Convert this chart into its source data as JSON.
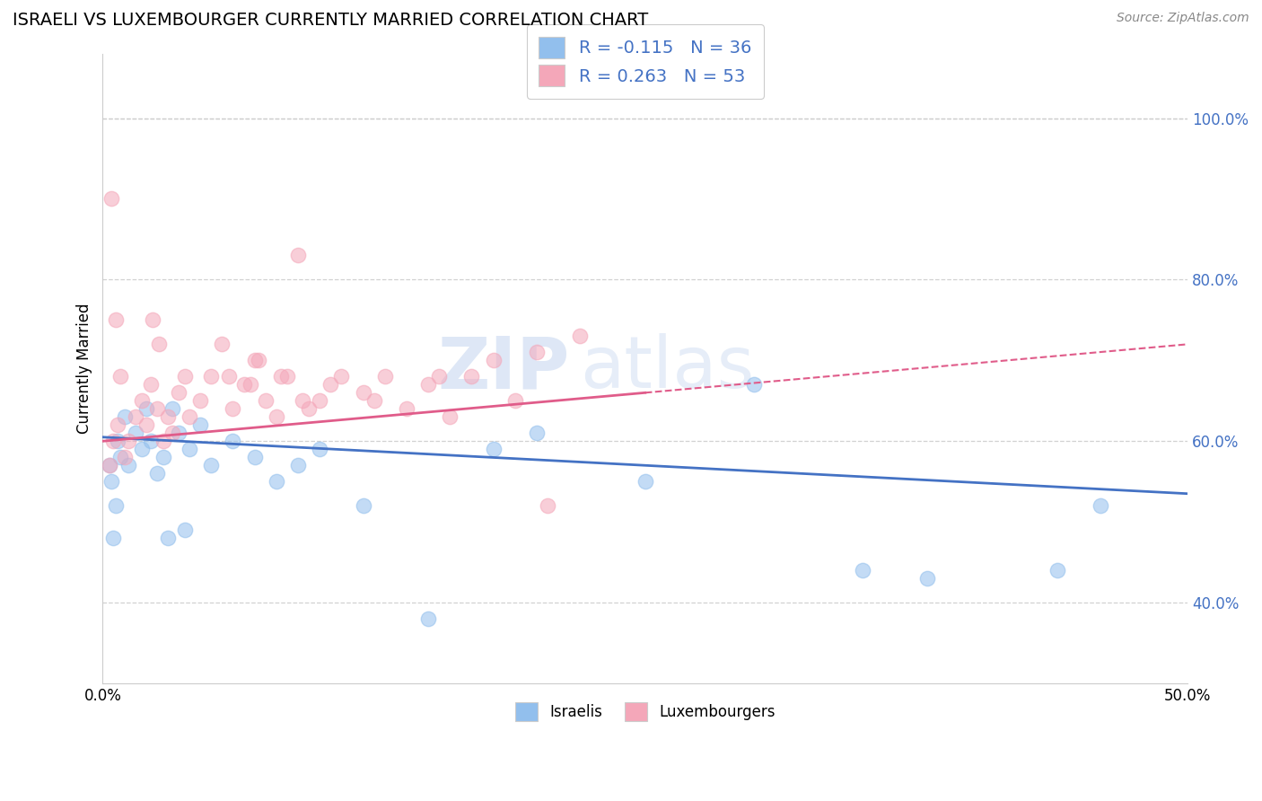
{
  "title": "ISRAELI VS LUXEMBOURGER CURRENTLY MARRIED CORRELATION CHART",
  "source_text": "Source: ZipAtlas.com",
  "ylabel": "Currently Married",
  "xlim": [
    0.0,
    50.0
  ],
  "ylim": [
    30.0,
    108.0
  ],
  "yticks": [
    40.0,
    60.0,
    80.0,
    100.0
  ],
  "legend_label1": "R = -0.115   N = 36",
  "legend_label2": "R = 0.263   N = 53",
  "legend_bottom_label1": "Israelis",
  "legend_bottom_label2": "Luxembourgers",
  "color_israeli": "#92BFED",
  "color_luxembourger": "#F4A7B9",
  "color_israeli_line": "#4472C4",
  "color_luxembourger_line": "#E05C8A",
  "watermark1": "ZIP",
  "watermark2": "atlas",
  "israeli_R": -0.115,
  "luxembourger_R": 0.263,
  "israeli_line_x0": 0.0,
  "israeli_line_y0": 60.5,
  "israeli_line_x1": 50.0,
  "israeli_line_y1": 53.5,
  "lux_line_x0": 0.0,
  "lux_line_y0": 60.0,
  "lux_line_x1": 50.0,
  "lux_line_y1": 72.0,
  "lux_solid_x_end": 25.0,
  "israeli_x": [
    0.3,
    0.4,
    0.5,
    0.6,
    0.7,
    0.8,
    1.0,
    1.2,
    1.5,
    1.8,
    2.0,
    2.2,
    2.5,
    2.8,
    3.0,
    3.5,
    4.0,
    4.5,
    5.0,
    6.0,
    7.0,
    8.0,
    9.0,
    10.0,
    12.0,
    15.0,
    18.0,
    20.0,
    25.0,
    30.0,
    35.0,
    38.0,
    44.0,
    46.0,
    3.2,
    3.8
  ],
  "israeli_y": [
    57.0,
    55.0,
    48.0,
    52.0,
    60.0,
    58.0,
    63.0,
    57.0,
    61.0,
    59.0,
    64.0,
    60.0,
    56.0,
    58.0,
    48.0,
    61.0,
    59.0,
    62.0,
    57.0,
    60.0,
    58.0,
    55.0,
    57.0,
    59.0,
    52.0,
    38.0,
    59.0,
    61.0,
    55.0,
    67.0,
    44.0,
    43.0,
    44.0,
    52.0,
    64.0,
    49.0
  ],
  "luxembourger_x": [
    0.3,
    0.5,
    0.7,
    0.8,
    1.0,
    1.2,
    1.5,
    1.8,
    2.0,
    2.2,
    2.5,
    2.8,
    3.0,
    3.2,
    3.5,
    4.0,
    4.5,
    5.0,
    5.5,
    6.0,
    6.5,
    7.0,
    7.5,
    8.0,
    8.5,
    9.0,
    9.5,
    10.0,
    11.0,
    12.0,
    13.0,
    14.0,
    15.0,
    16.0,
    17.0,
    18.0,
    19.0,
    20.0,
    22.0,
    0.4,
    0.6,
    2.3,
    2.6,
    3.8,
    5.8,
    6.8,
    7.2,
    8.2,
    9.2,
    10.5,
    12.5,
    15.5,
    20.5
  ],
  "luxembourger_y": [
    57.0,
    60.0,
    62.0,
    68.0,
    58.0,
    60.0,
    63.0,
    65.0,
    62.0,
    67.0,
    64.0,
    60.0,
    63.0,
    61.0,
    66.0,
    63.0,
    65.0,
    68.0,
    72.0,
    64.0,
    67.0,
    70.0,
    65.0,
    63.0,
    68.0,
    83.0,
    64.0,
    65.0,
    68.0,
    66.0,
    68.0,
    64.0,
    67.0,
    63.0,
    68.0,
    70.0,
    65.0,
    71.0,
    73.0,
    90.0,
    75.0,
    75.0,
    72.0,
    68.0,
    68.0,
    67.0,
    70.0,
    68.0,
    65.0,
    67.0,
    65.0,
    68.0,
    52.0
  ]
}
